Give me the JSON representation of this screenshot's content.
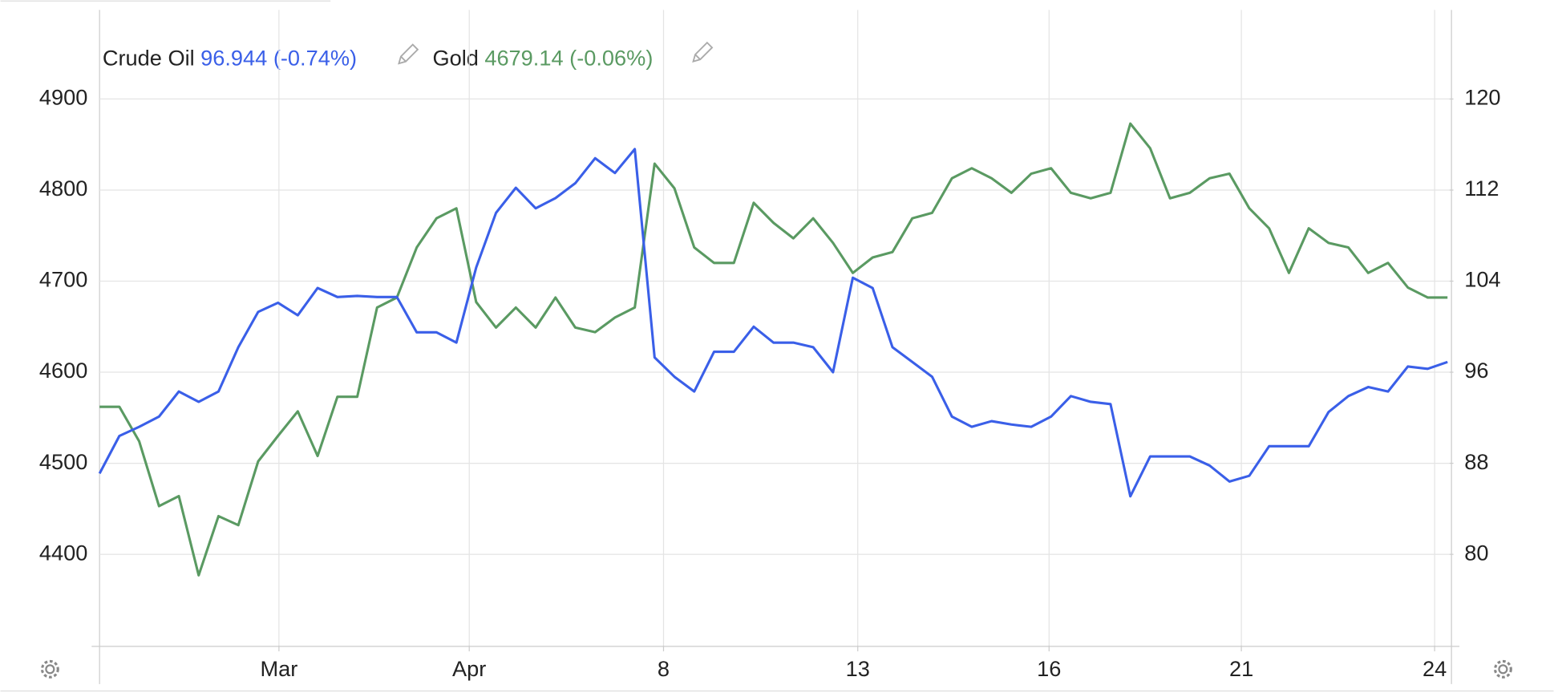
{
  "chart_data": {
    "type": "line",
    "x": [
      0,
      2,
      4,
      6,
      8,
      10,
      12,
      14,
      16,
      18,
      20,
      22,
      24,
      26,
      28,
      30,
      32,
      34,
      36,
      38,
      40,
      42,
      44,
      46,
      48,
      50,
      52,
      54,
      56,
      58,
      60,
      62,
      64,
      66,
      68,
      70,
      72,
      74,
      76,
      78,
      80,
      82,
      84,
      86,
      88,
      90,
      92,
      94,
      96,
      98,
      100,
      102,
      104,
      106,
      108,
      110,
      112,
      114,
      116,
      118,
      120,
      122,
      124,
      126,
      128,
      130,
      132,
      134,
      136
    ],
    "xlim": [
      0,
      136.2
    ],
    "xticks": [
      {
        "value": 18.1,
        "label": "Mar"
      },
      {
        "value": 37.3,
        "label": "Apr"
      },
      {
        "value": 56.9,
        "label": "8"
      },
      {
        "value": 76.5,
        "label": "13"
      },
      {
        "value": 95.8,
        "label": "16"
      },
      {
        "value": 115.2,
        "label": "21"
      },
      {
        "value": 134.7,
        "label": "24"
      }
    ],
    "ylim": [
      4300,
      5000
    ],
    "yticks": [
      4400,
      4500,
      4600,
      4700,
      4800,
      4900
    ],
    "y2lim": [
      72,
      128
    ],
    "y2ticks": [
      80,
      88,
      96,
      104,
      112,
      120
    ],
    "grid": true,
    "series": [
      {
        "name": "Crude Oil",
        "quote": "96.944 (-0.74%)",
        "color": "#3a5fe8",
        "axis": "y2",
        "values": [
          87.1,
          90.4,
          91.2,
          92.1,
          94.3,
          93.4,
          94.3,
          98.2,
          101.3,
          102.1,
          101.0,
          103.4,
          102.6,
          102.7,
          102.6,
          102.6,
          99.5,
          99.5,
          98.6,
          105.2,
          110.0,
          112.2,
          110.4,
          111.3,
          112.6,
          114.8,
          113.5,
          115.6,
          97.3,
          95.6,
          94.3,
          97.8,
          97.8,
          100.0,
          98.6,
          98.6,
          98.2,
          96.0,
          104.3,
          103.4,
          98.2,
          96.9,
          95.6,
          92.1,
          91.2,
          91.7,
          91.4,
          91.2,
          92.1,
          93.9,
          93.4,
          93.2,
          85.1,
          88.6,
          88.6,
          88.6,
          87.8,
          86.4,
          86.9,
          89.5,
          89.5,
          89.5,
          92.5,
          93.9,
          94.7,
          94.3,
          96.5,
          96.3,
          96.9
        ]
      },
      {
        "name": "Gold",
        "quote": "4679.14 (-0.06%)",
        "color": "#5a9a62",
        "values": [
          4562,
          4562,
          4524,
          4453,
          4464,
          4377,
          4442,
          4432,
          4502,
          4530,
          4557,
          4508,
          4573,
          4573,
          4671,
          4682,
          4737,
          4769,
          4780,
          4677,
          4649,
          4671,
          4649,
          4682,
          4649,
          4644,
          4660,
          4671,
          4829,
          4802,
          4737,
          4720,
          4720,
          4786,
          4764,
          4747,
          4769,
          4742,
          4709,
          4726,
          4732,
          4769,
          4775,
          4813,
          4824,
          4813,
          4797,
          4818,
          4824,
          4797,
          4791,
          4797,
          4873,
          4846,
          4791,
          4797,
          4813,
          4818,
          4780,
          4758,
          4709,
          4758,
          4742,
          4737,
          4709,
          4720,
          4693,
          4682,
          4682
        ]
      }
    ]
  }
}
